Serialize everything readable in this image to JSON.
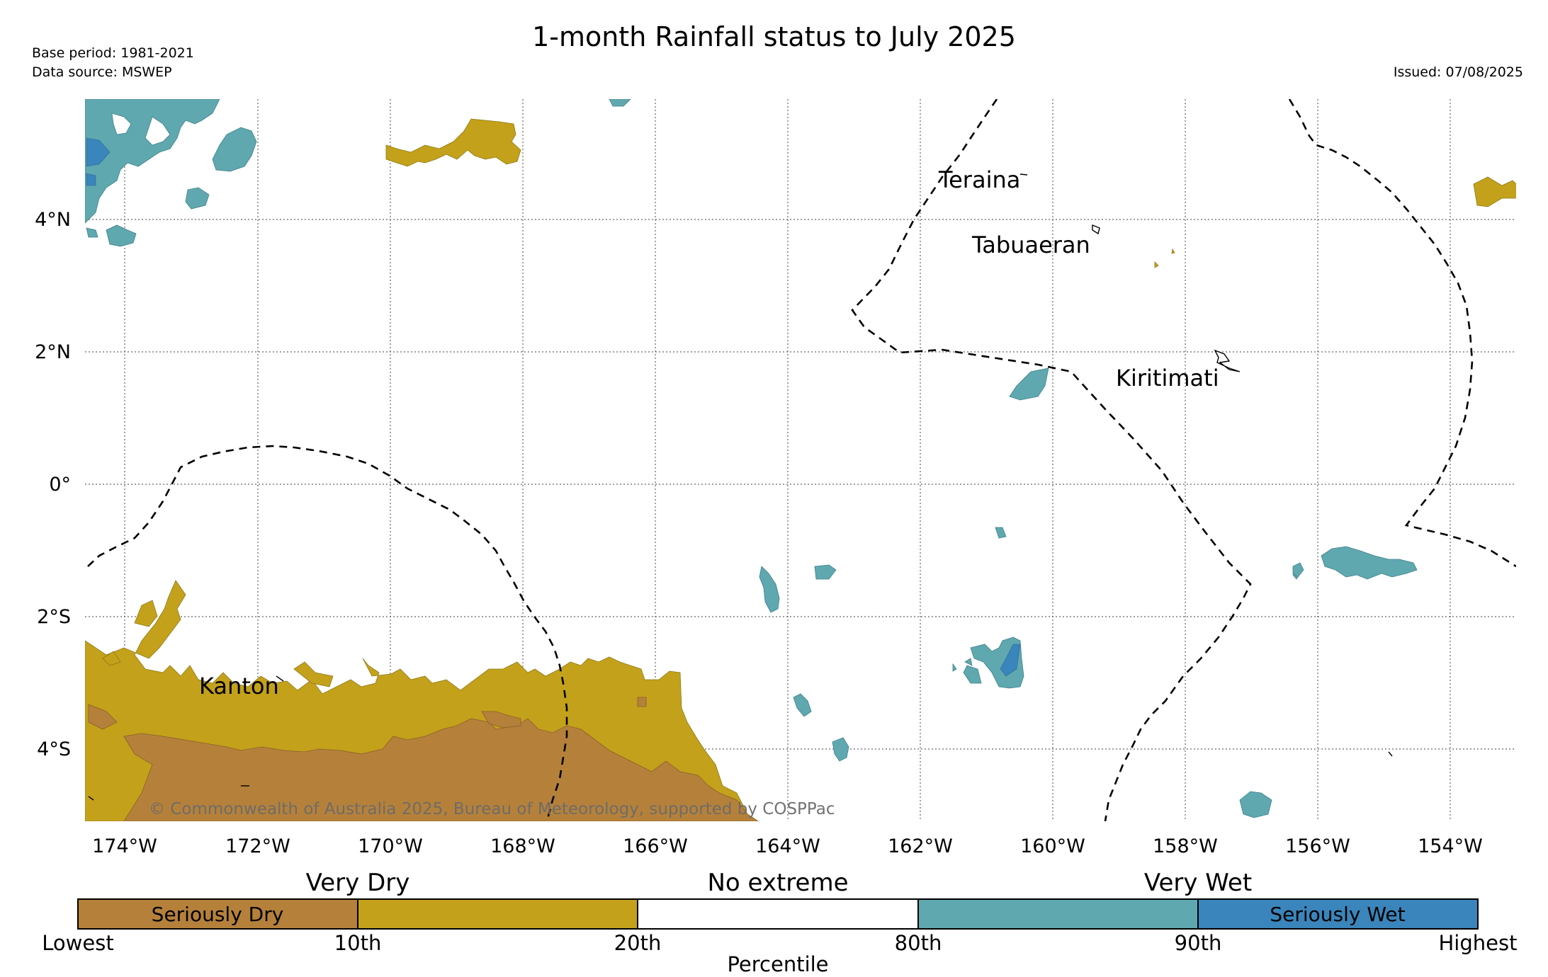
{
  "header": {
    "title": "1-month Rainfall status to July 2025",
    "base_period": "Base period: 1981-2021",
    "data_source": "Data source: MSWEP",
    "issued": "Issued: 07/08/2025"
  },
  "map": {
    "longitude_labels": [
      "174°W",
      "172°W",
      "170°W",
      "168°W",
      "166°W",
      "164°W",
      "162°W",
      "160°W",
      "158°W",
      "156°W",
      "154°W"
    ],
    "latitude_labels": [
      "4°N",
      "2°N",
      "0°",
      "2°S",
      "4°S"
    ],
    "places": [
      "Teraina",
      "Tabuaeran",
      "Kiritimati",
      "Kanton"
    ],
    "copyright": "© Commonwealth of Australia 2025, Bureau of Meteorology, supported by COSPPac",
    "grid": "dotted",
    "boundary_style": "dashed"
  },
  "legend": {
    "groups": [
      "Very Dry",
      "No extreme",
      "Very Wet"
    ],
    "classes": [
      "Seriously Dry",
      "",
      "",
      "",
      "Seriously Wet"
    ],
    "ticks": [
      "Lowest",
      "10th",
      "20th",
      "80th",
      "90th",
      "Highest"
    ],
    "axis_label": "Percentile",
    "colors": {
      "seriously_dry": "#b5813a",
      "very_dry": "#c3a11b",
      "no_extreme": "#ffffff",
      "very_wet": "#5fa8b0",
      "seriously_wet": "#3a85bb"
    }
  }
}
